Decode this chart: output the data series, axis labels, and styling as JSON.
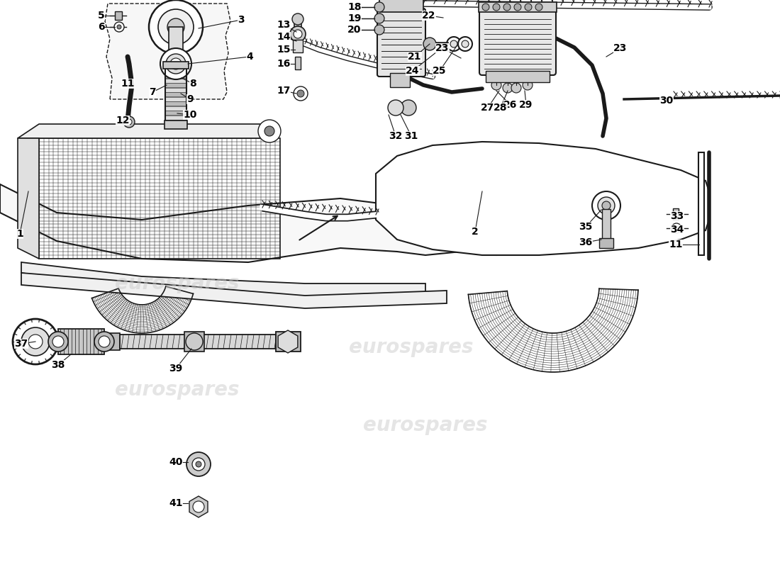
{
  "background_color": "#ffffff",
  "watermark_text": "eurospares",
  "watermark_color": "#cccccc",
  "watermark_alpha": 0.5,
  "watermark_fontsize": 20,
  "line_color": "#1a1a1a",
  "label_fontsize": 10,
  "label_fontweight": "bold",
  "fig_width": 11.0,
  "fig_height": 8.0,
  "dpi": 100
}
